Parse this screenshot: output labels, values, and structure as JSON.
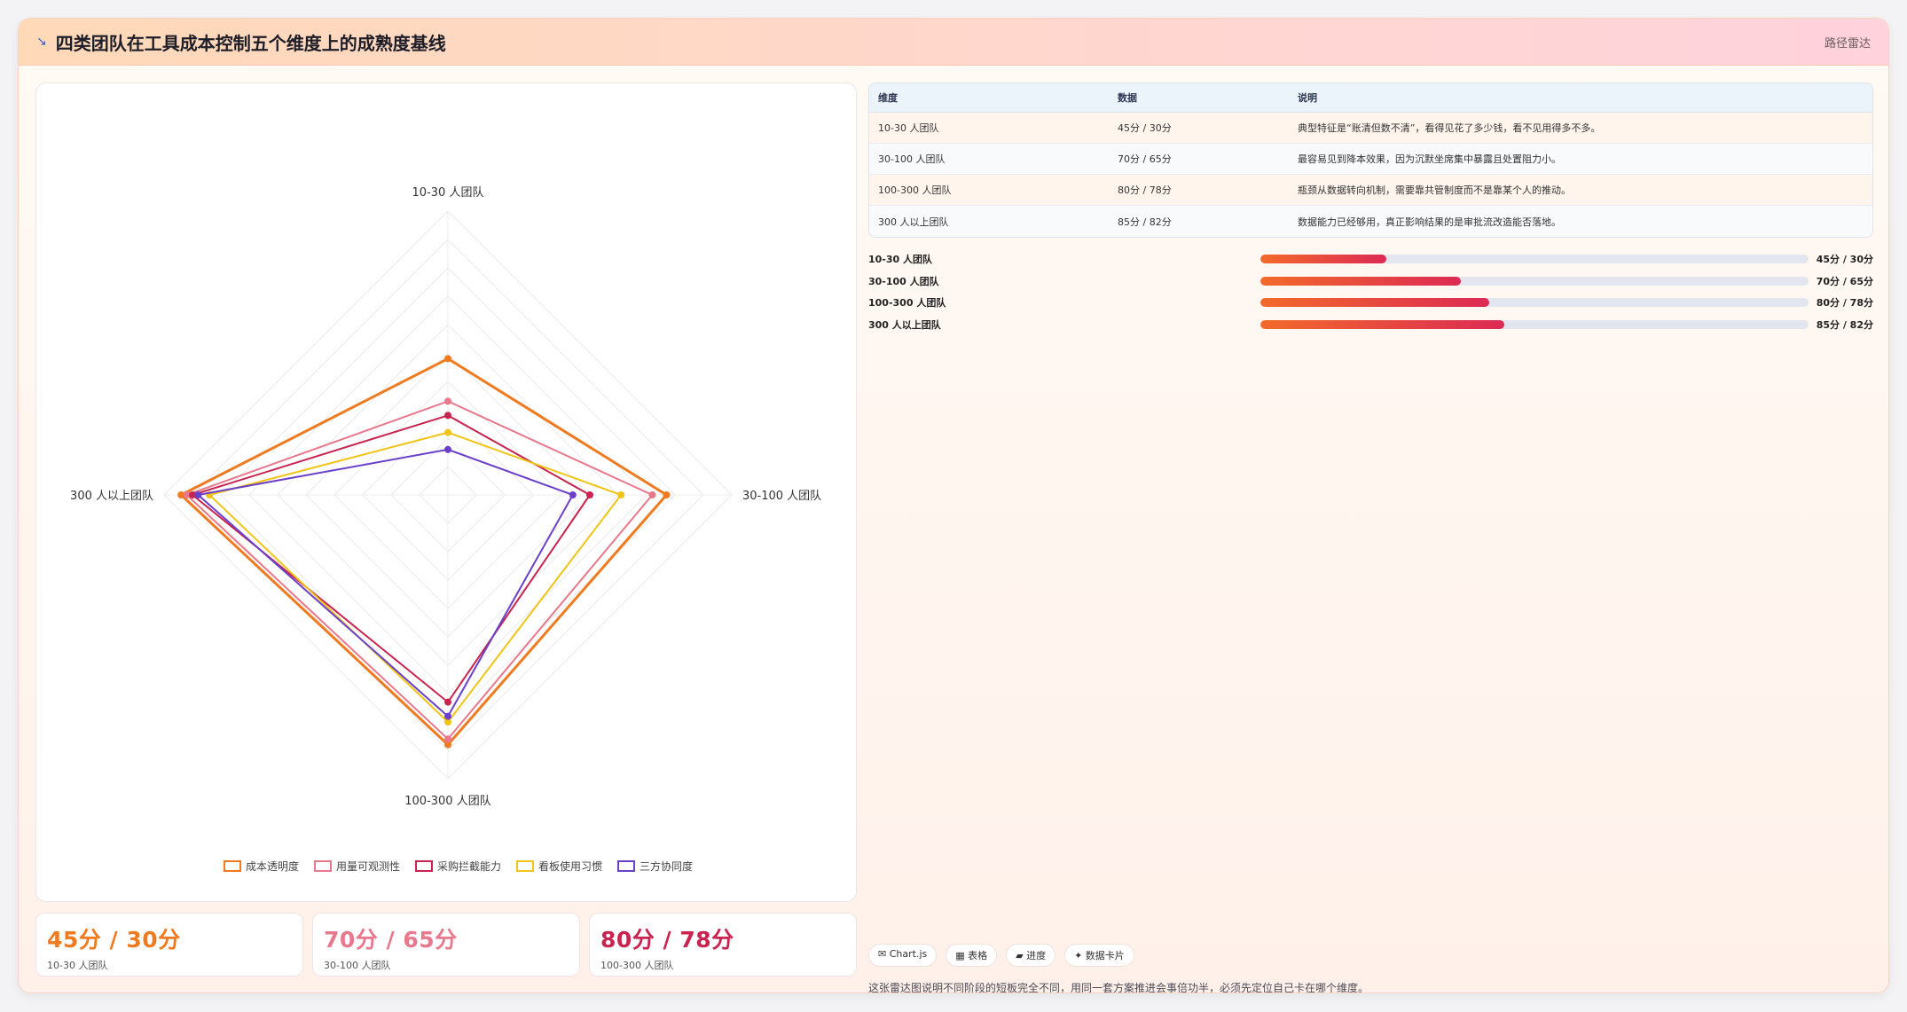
{
  "header": {
    "title": "四类团队在工具成本控制五个维度上的成熟度基线",
    "badge": "路径雷达"
  },
  "chart_data": {
    "type": "radar",
    "axes": [
      "10-30 人团队",
      "30-100 人团队",
      "100-300 人团队",
      "300 人以上团队"
    ],
    "rmax": 100,
    "grid": true,
    "legend_position": "bottom",
    "series": [
      {
        "name": "成本透明度",
        "color": "#ef7a1f",
        "values": [
          48,
          77,
          88,
          94
        ]
      },
      {
        "name": "用量可观测性",
        "color": "#e8788b",
        "values": [
          33,
          72,
          86,
          92
        ]
      },
      {
        "name": "采购拦截能力",
        "color": "#c8244f",
        "values": [
          28,
          50,
          73,
          90
        ]
      },
      {
        "name": "看板使用习惯",
        "color": "#f0c419",
        "values": [
          22,
          61,
          80,
          84
        ]
      },
      {
        "name": "三方协同度",
        "color": "#6a3fc9",
        "values": [
          16,
          44,
          78,
          88
        ]
      }
    ]
  },
  "kpis": [
    {
      "value": "45分 / 30分",
      "label": "10-30 人团队",
      "color": "#ef7a1f"
    },
    {
      "value": "70分 / 65分",
      "label": "30-100 人团队",
      "color": "#e8788b"
    },
    {
      "value": "80分 / 78分",
      "label": "100-300 人团队",
      "color": "#c8244f"
    }
  ],
  "table": {
    "headers": [
      "维度",
      "数据",
      "说明"
    ],
    "rows": [
      [
        "10-30 人团队",
        "45分 / 30分",
        "典型特征是“账清但数不清”，看得见花了多少钱，看不见用得多不多。"
      ],
      [
        "30-100 人团队",
        "70分 / 65分",
        "最容易见到降本效果，因为沉默坐席集中暴露且处置阻力小。"
      ],
      [
        "100-300 人团队",
        "80分 / 78分",
        "瓶颈从数据转向机制，需要靠共管制度而不是靠某个人的推动。"
      ],
      [
        "300 人以上团队",
        "85分 / 82分",
        "数据能力已经够用，真正影响结果的是审批流改造能否落地。"
      ]
    ]
  },
  "progress": [
    {
      "label": "10-30 人团队",
      "value": "45分 / 30分",
      "fraction": 0.23
    },
    {
      "label": "30-100 人团队",
      "value": "70分 / 65分",
      "fraction": 0.365
    },
    {
      "label": "100-300 人团队",
      "value": "80分 / 78分",
      "fraction": 0.417
    },
    {
      "label": "300 人以上团队",
      "value": "85分 / 82分",
      "fraction": 0.445
    }
  ],
  "tags": [
    "✉ Chart.js",
    "▦ 表格",
    "▰ 进度",
    "✦ 数据卡片"
  ],
  "footnote": "这张雷达图说明不同阶段的短板完全不同，用同一套方案推进会事倍功半，必须先定位自己卡在哪个维度。"
}
